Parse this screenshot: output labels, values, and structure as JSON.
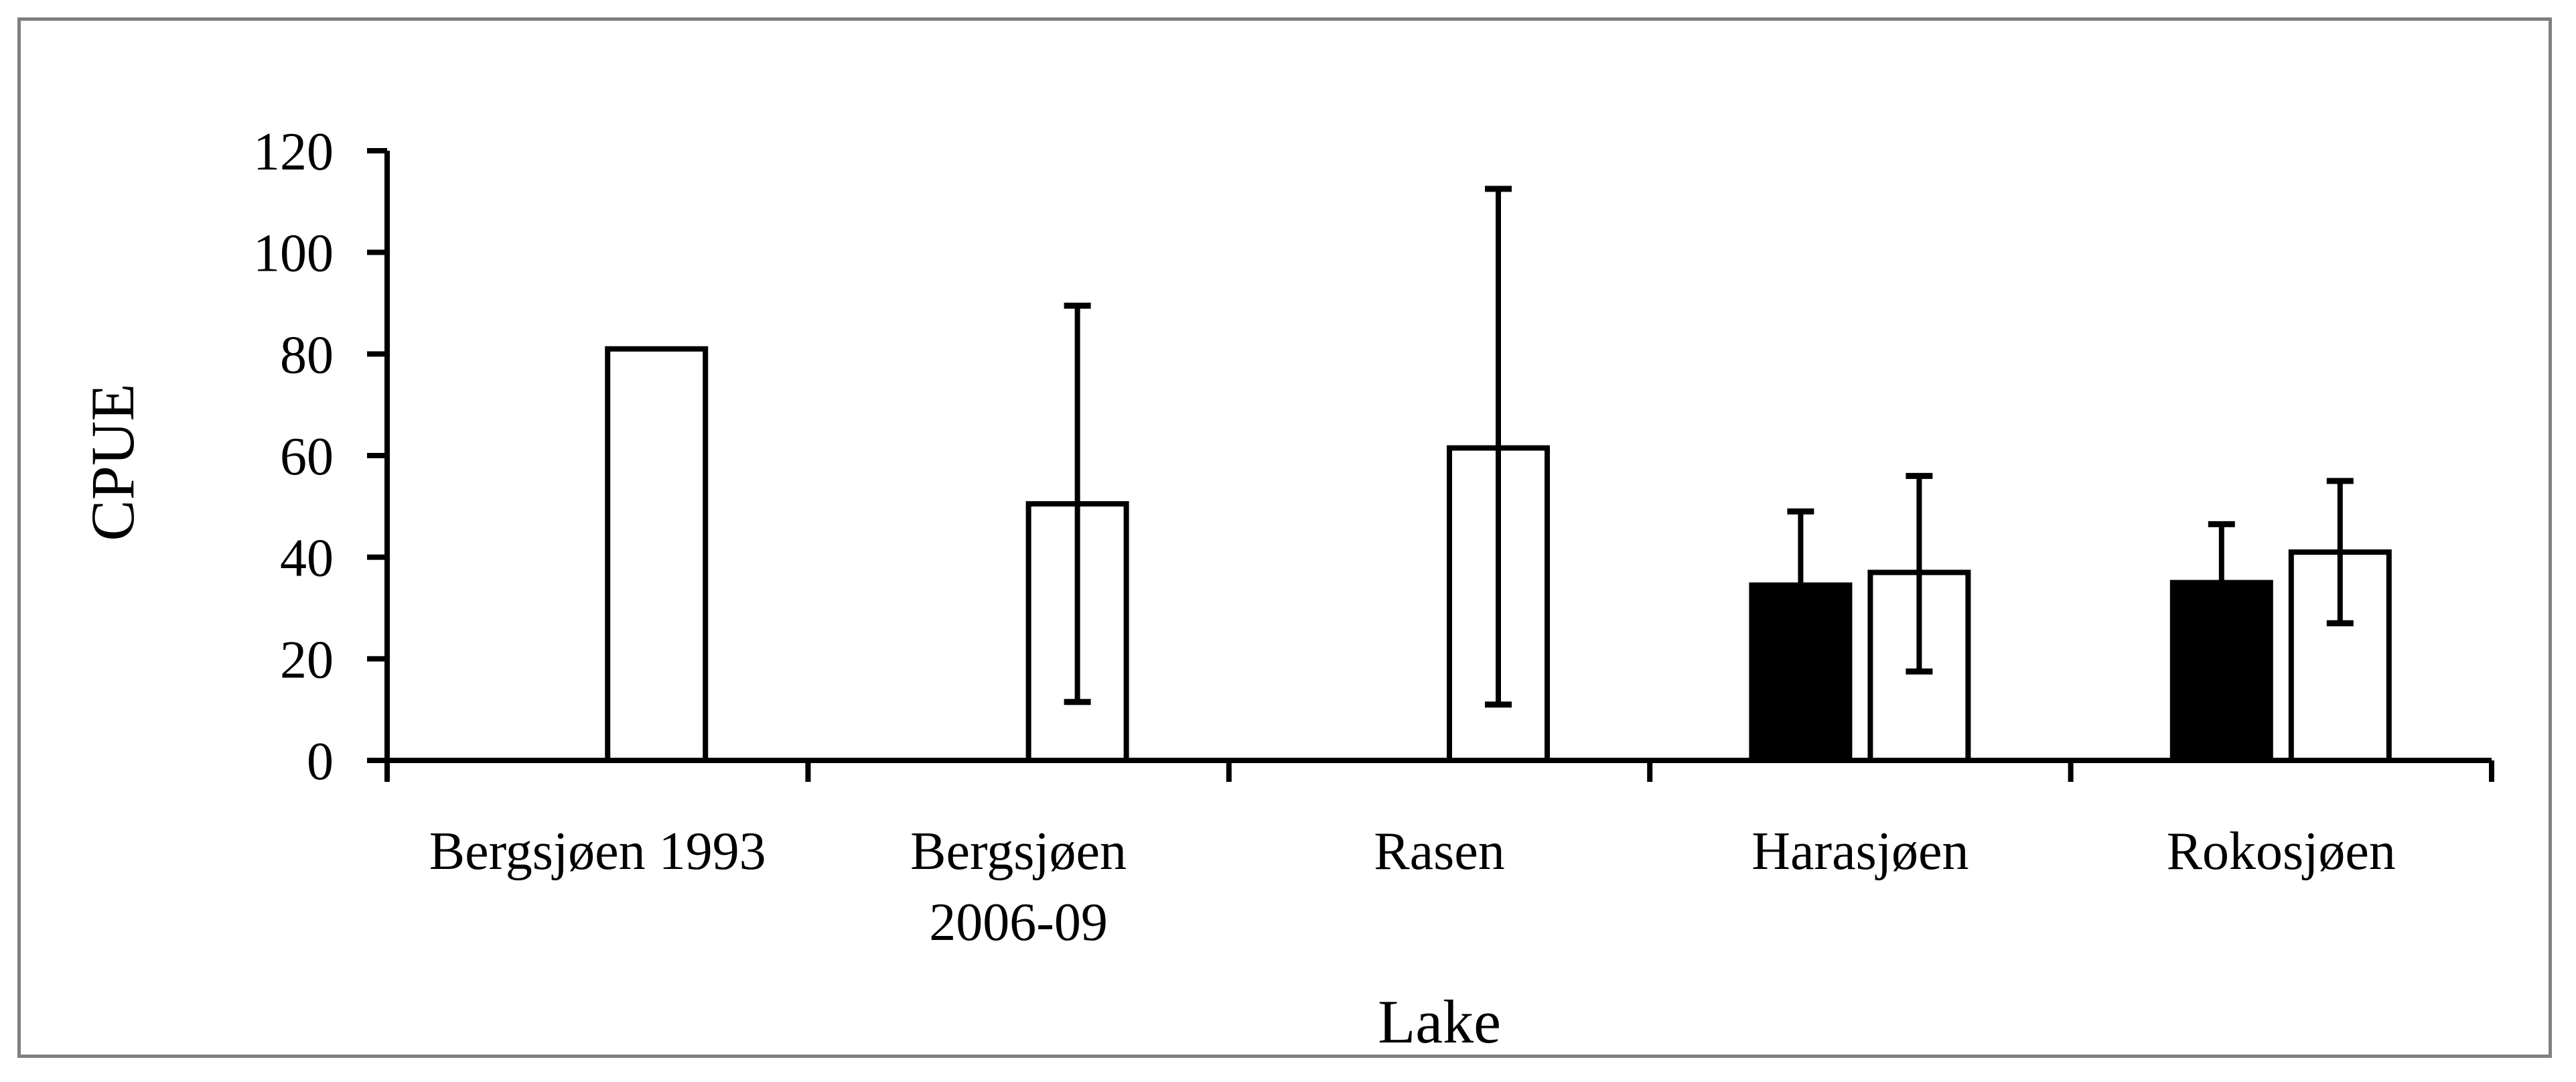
{
  "figure": {
    "border_color": "#7f7f7f",
    "background_color": "#ffffff",
    "ink_color": "#000000"
  },
  "chart_data": {
    "type": "bar",
    "title": "",
    "xlabel": "Lake",
    "ylabel": "CPUE",
    "ylim": [
      0,
      120
    ],
    "yticks": [
      0,
      20,
      40,
      60,
      80,
      100,
      120
    ],
    "grid": false,
    "legend_position": "none",
    "categories": [
      "Bergsjøen 1993",
      "Bergsjøen 2006-09",
      "Rasen",
      "Harasjøen",
      "Rokosjøen"
    ],
    "category_label_lines": [
      [
        "Bergsjøen 1993"
      ],
      [
        "Bergsjøen",
        "2006-09"
      ],
      [
        "Rasen"
      ],
      [
        "Harasjøen"
      ],
      [
        "Rokosjøen"
      ]
    ],
    "series": [
      {
        "name": "series-black",
        "fill": "#000000",
        "values": [
          null,
          null,
          null,
          34.5,
          35
        ],
        "error_plus": [
          null,
          null,
          null,
          14.5,
          11.5
        ],
        "error_minus": [
          null,
          null,
          null,
          null,
          null
        ]
      },
      {
        "name": "series-white",
        "fill": "#ffffff",
        "values": [
          81,
          50.5,
          61.5,
          37,
          41
        ],
        "error_plus": [
          null,
          39,
          51,
          19,
          14
        ],
        "error_minus": [
          null,
          39,
          50.5,
          19.5,
          14
        ]
      }
    ]
  }
}
